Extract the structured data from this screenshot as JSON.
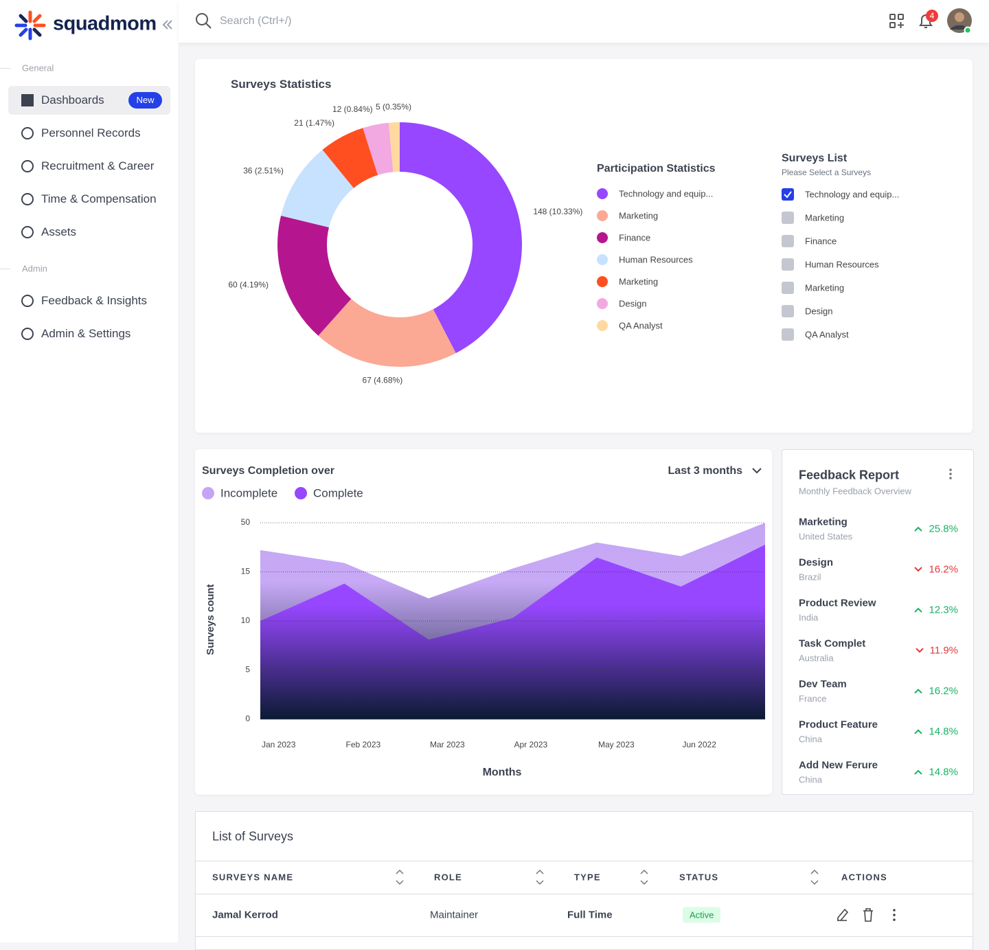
{
  "sidebar": {
    "brand": "squadmom",
    "sections": [
      {
        "title": "General",
        "items": [
          {
            "label": "Dashboards",
            "badge": "New"
          },
          {
            "label": "Personnel Records"
          },
          {
            "label": "Recruitment & Career"
          },
          {
            "label": "Time & Compensation"
          },
          {
            "label": "Assets"
          }
        ]
      },
      {
        "title": "Admin",
        "items": [
          {
            "label": "Feedback & Insights"
          },
          {
            "label": "Admin & Settings"
          }
        ]
      }
    ]
  },
  "header": {
    "search_placeholder": "Search (Ctrl+/)",
    "notifications": "4"
  },
  "chart_data": [
    {
      "type": "pie",
      "donut": true,
      "title": "Surveys Statistics",
      "legend_title": "Participation Statistics",
      "categories": [
        "Technology and equip...",
        "Marketing",
        "Finance",
        "Human Resources",
        "Marketing",
        "Design",
        "QA Analyst"
      ],
      "values": [
        148,
        67,
        60,
        36,
        21,
        12,
        5
      ],
      "value_labels": [
        "148 (10.33%)",
        "67 (4.68%)",
        "60 (4.19%)",
        "36 (2.51%)",
        "21 (1.47%)",
        "12 (0.84%)",
        "5 (0.35%)"
      ],
      "colors": [
        "#9747ff",
        "#fba994",
        "#b5168f",
        "#c7e2ff",
        "#ff4f20",
        "#f2a8e0",
        "#ffd9a0"
      ]
    },
    {
      "type": "area",
      "title": "Surveys  Completion over",
      "period": "Last 3 months",
      "x_label": "Months",
      "y_label": "Surveys count",
      "categories": [
        "Jan 2023",
        "Feb 2023",
        "Mar 2023",
        "Apr 2023",
        "May 2023",
        "Jun 2022",
        null
      ],
      "series": [
        {
          "name": "Incomplete",
          "color": "#c4a5f5",
          "values": [
            30.5,
            21.3,
            12.3,
            17.4,
            35.9,
            26.2,
            50
          ]
        },
        {
          "name": "Complete",
          "color": "#9747ff",
          "values": [
            10,
            13.8,
            8.1,
            10.3,
            25.2,
            13.5,
            34.4
          ]
        }
      ],
      "ylim": [
        0,
        50
      ],
      "yticks": [
        0,
        5,
        10,
        15,
        50
      ],
      "grid": true
    }
  ],
  "surveys_list": {
    "title": "Surveys List",
    "subtitle": "Please Select a Surveys",
    "items": [
      "Technology and equip...",
      "Marketing",
      "Finance",
      "Human Resources",
      "Marketing",
      "Design",
      "QA Analyst"
    ],
    "checked": [
      true,
      false,
      false,
      false,
      false,
      false,
      false
    ]
  },
  "feedback_report": {
    "title": "Feedback Report",
    "subtitle": "Monthly Feedback Overview",
    "items": [
      {
        "name": "Marketing",
        "country": "United States",
        "change": "25.8%",
        "trend": "up"
      },
      {
        "name": "Design",
        "country": "Brazil",
        "change": "16.2%",
        "trend": "down"
      },
      {
        "name": "Product Review",
        "country": "India",
        "change": "12.3%",
        "trend": "up"
      },
      {
        "name": "Task Complet",
        "country": "Australia",
        "change": "11.9%",
        "trend": "down"
      },
      {
        "name": "Dev Team",
        "country": "France",
        "change": "16.2%",
        "trend": "up"
      },
      {
        "name": "Product Feature",
        "country": "China",
        "change": "14.8%",
        "trend": "up"
      },
      {
        "name": "Add New Ferure",
        "country": "China",
        "change": "14.8%",
        "trend": "up"
      }
    ]
  },
  "table": {
    "title": "List of Surveys",
    "columns": [
      "SURVEYS NAME",
      "ROLE",
      "TYPE",
      "STATUS",
      "ACTIONS"
    ],
    "rows": [
      [
        "Jamal Kerrod",
        "Maintainer",
        "Full Time",
        "Active"
      ]
    ]
  }
}
